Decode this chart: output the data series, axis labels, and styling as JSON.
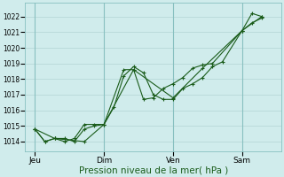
{
  "bg_color": "#d0ecec",
  "grid_color": "#b8d8d8",
  "line_color": "#1a5c1a",
  "marker_color": "#1a5c1a",
  "xlabel": "Pression niveau de la mer( hPa )",
  "xlabel_fontsize": 7.5,
  "yticks": [
    1014,
    1015,
    1016,
    1017,
    1018,
    1019,
    1020,
    1021,
    1022
  ],
  "ylim": [
    1013.4,
    1022.9
  ],
  "xtick_labels": [
    "Jeu",
    "Dim",
    "Ven",
    "Sam"
  ],
  "xtick_positions": [
    0,
    3.5,
    7,
    10.5
  ],
  "xlim": [
    -0.5,
    12.5
  ],
  "vline_positions": [
    0,
    3.5,
    7,
    10.5
  ],
  "series1_x": [
    0,
    0.5,
    1.0,
    1.5,
    2.0,
    2.5,
    3.0,
    3.5,
    4.0,
    4.5,
    5.0,
    5.5,
    6.0,
    6.5,
    7.0,
    7.5,
    8.0,
    8.5,
    9.0,
    9.5,
    10.5,
    11.0,
    11.5
  ],
  "series1_y": [
    1014.8,
    1014.0,
    1014.2,
    1014.2,
    1014.0,
    1014.8,
    1015.0,
    1015.1,
    1016.2,
    1018.2,
    1018.8,
    1018.4,
    1017.0,
    1016.7,
    1016.7,
    1017.4,
    1017.7,
    1018.1,
    1018.8,
    1019.1,
    1021.1,
    1022.2,
    1022.0
  ],
  "series2_x": [
    0,
    0.5,
    1.0,
    1.5,
    2.0,
    2.5,
    3.0,
    3.5,
    4.5,
    5.0,
    5.5,
    6.0,
    6.5,
    7.0,
    7.5,
    8.0,
    8.5,
    9.0,
    10.5,
    11.0,
    11.5
  ],
  "series2_y": [
    1014.8,
    1014.0,
    1014.2,
    1014.0,
    1014.2,
    1015.1,
    1015.1,
    1015.1,
    1018.6,
    1018.6,
    1016.7,
    1016.8,
    1017.4,
    1017.7,
    1018.1,
    1018.7,
    1018.9,
    1019.0,
    1021.1,
    1021.6,
    1021.9
  ],
  "series3_x": [
    0,
    1.0,
    2.5,
    3.5,
    5.0,
    7.0,
    8.5,
    10.5,
    11.5
  ],
  "series3_y": [
    1014.8,
    1014.2,
    1014.0,
    1015.1,
    1018.6,
    1016.8,
    1018.7,
    1021.1,
    1022.0
  ]
}
